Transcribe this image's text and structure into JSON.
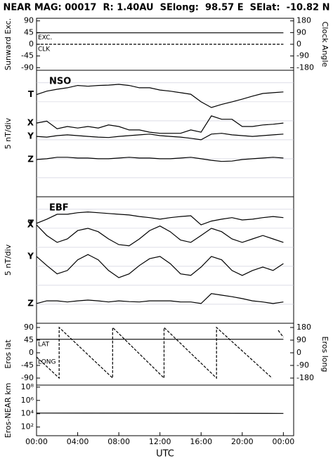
{
  "chart_data": [
    {
      "type": "line",
      "title": "NEAR MAG: 00017  R: 1.40AU  SElong:  98.57 E  SElat:  -10.82 N",
      "ylabel": "Sunward Exc.",
      "y2label": "Clock Angle",
      "xlim": [
        0,
        25
      ],
      "x": [
        0,
        24
      ],
      "ylim": [
        -100,
        100
      ],
      "yticks": [
        90,
        45,
        0,
        -45,
        -90
      ],
      "y2lim": [
        -200,
        200
      ],
      "y2ticks": [
        180,
        90,
        0,
        -90,
        -180
      ],
      "series": [
        {
          "name": "EXC.",
          "color": "#000000",
          "values": [
            44,
            44
          ]
        },
        {
          "name": "CLK",
          "color": "#000000",
          "axis": "y2",
          "dash": true,
          "values": [
            0,
            0
          ]
        }
      ]
    },
    {
      "type": "line",
      "label": "NSO",
      "ylabel": "5 nT/div",
      "xlim": [
        0,
        25
      ],
      "ylim": [
        0,
        33.3
      ],
      "grid_lines": [
        5,
        10,
        15,
        20,
        25,
        30
      ],
      "x": [
        0,
        1,
        2,
        3,
        4,
        5,
        6,
        7,
        8,
        9,
        10,
        11,
        12,
        13,
        14,
        15,
        16,
        17,
        18,
        19,
        20,
        21,
        22,
        23,
        24
      ],
      "series": [
        {
          "name": "T",
          "color": "#000000",
          "values": [
            26.9,
            27.8,
            28.3,
            28.7,
            29.3,
            29.1,
            29.3,
            29.4,
            29.6,
            29.3,
            28.7,
            28.7,
            28.1,
            27.8,
            27.4,
            27.0,
            25.0,
            23.5,
            24.3,
            25.0,
            25.7,
            26.5,
            27.2,
            27.4,
            27.6
          ]
        },
        {
          "name": "X",
          "color": "#000000",
          "values": [
            19.4,
            19.9,
            17.9,
            18.5,
            18.1,
            18.5,
            18.1,
            18.9,
            18.5,
            17.6,
            17.6,
            17.0,
            16.7,
            16.7,
            16.7,
            17.6,
            17.0,
            21.3,
            20.4,
            20.4,
            18.5,
            18.5,
            18.9,
            19.1,
            19.4
          ]
        },
        {
          "name": "Y",
          "color": "#000000",
          "values": [
            15.9,
            15.7,
            16.1,
            16.3,
            16.1,
            15.9,
            15.7,
            15.6,
            15.9,
            16.1,
            16.3,
            16.5,
            16.1,
            15.9,
            15.7,
            15.4,
            15.0,
            16.5,
            16.7,
            16.3,
            16.1,
            15.9,
            16.1,
            16.3,
            16.5
          ]
        },
        {
          "name": "Z",
          "color": "#000000",
          "values": [
            9.8,
            10.0,
            10.4,
            10.4,
            10.2,
            10.2,
            10.0,
            10.0,
            10.2,
            10.4,
            10.2,
            10.2,
            10.0,
            10.0,
            10.2,
            10.4,
            10.0,
            9.6,
            9.3,
            9.4,
            9.8,
            10.0,
            10.2,
            10.4,
            10.2
          ]
        }
      ]
    },
    {
      "type": "line",
      "label": "EBF",
      "ylabel": "5 nT/div",
      "xlim": [
        0,
        25
      ],
      "ylim": [
        0,
        33.3
      ],
      "grid_lines": [
        5,
        10,
        15,
        20,
        25,
        30
      ],
      "x": [
        0,
        1,
        2,
        3,
        4,
        5,
        6,
        7,
        8,
        9,
        10,
        11,
        12,
        13,
        14,
        15,
        16,
        17,
        18,
        19,
        20,
        21,
        22,
        23,
        24
      ],
      "series": [
        {
          "name": "T",
          "color": "#000000",
          "values": [
            26.3,
            27.4,
            28.7,
            28.7,
            29.1,
            29.3,
            29.1,
            28.9,
            28.7,
            28.5,
            28.1,
            27.8,
            27.4,
            27.8,
            28.1,
            28.3,
            25.9,
            26.9,
            27.4,
            27.8,
            27.2,
            27.4,
            27.8,
            28.1,
            27.8
          ]
        },
        {
          "name": "X",
          "color": "#000000",
          "values": [
            25.9,
            23.1,
            21.3,
            22.2,
            24.4,
            25.0,
            24.1,
            22.2,
            20.7,
            20.4,
            22.2,
            24.4,
            25.6,
            24.1,
            21.9,
            21.3,
            23.1,
            25.0,
            24.1,
            22.2,
            21.3,
            22.2,
            23.1,
            22.2,
            21.3
          ]
        },
        {
          "name": "Y",
          "color": "#000000",
          "values": [
            17.6,
            15.2,
            13.0,
            13.9,
            16.7,
            18.1,
            16.7,
            13.9,
            12.0,
            13.0,
            15.2,
            17.0,
            17.6,
            15.7,
            13.0,
            12.6,
            14.8,
            17.6,
            16.7,
            13.9,
            12.6,
            13.9,
            14.8,
            13.9,
            15.7
          ]
        },
        {
          "name": "Z",
          "color": "#000000",
          "values": [
            5.2,
            5.9,
            5.9,
            5.6,
            5.9,
            6.1,
            5.9,
            5.6,
            5.9,
            5.7,
            5.6,
            5.9,
            5.9,
            5.9,
            5.6,
            5.6,
            5.2,
            7.8,
            7.4,
            7.0,
            6.5,
            5.9,
            5.6,
            5.2,
            5.6
          ]
        }
      ]
    },
    {
      "type": "line",
      "ylabel": "Eros lat",
      "y2label": "Eros long",
      "xlim": [
        0,
        25
      ],
      "x": [
        0,
        24
      ],
      "ylim": [
        -115,
        105
      ],
      "yticks": [
        90,
        45,
        0,
        -45,
        -90
      ],
      "y2lim": [
        -230,
        210
      ],
      "y2ticks": [
        180,
        90,
        0,
        -90,
        -180
      ],
      "series": [
        {
          "name": "LAT",
          "color": "#000000",
          "values": [
            48,
            48
          ]
        },
        {
          "name": "LONG",
          "color": "#000000",
          "axis": "y2",
          "dash": true,
          "x": [
            0,
            2.2,
            2.2,
            7.4,
            7.4,
            12.4,
            12.4,
            17.5,
            17.5,
            22.9,
            23.2,
            23.5,
            24
          ],
          "values": [
            -30,
            -180,
            180,
            -180,
            180,
            -180,
            180,
            -180,
            180,
            -180,
            null,
            160,
            110
          ]
        }
      ]
    },
    {
      "type": "line",
      "ylabel": "Eros-NEAR km",
      "xlabel": "UTC",
      "log": true,
      "xlim": [
        0,
        25
      ],
      "x": [
        0,
        16,
        24
      ],
      "ylim": [
        5,
        200000000
      ],
      "yticks": [
        {
          "value": 100000000,
          "label": "10⁸"
        },
        {
          "value": 1000000,
          "label": "10⁶"
        },
        {
          "value": 10000,
          "label": "10⁴"
        },
        {
          "value": 100,
          "label": "10²"
        }
      ],
      "xticks": [
        {
          "value": 0,
          "label": "00:00"
        },
        {
          "value": 4,
          "label": "04:00"
        },
        {
          "value": 8,
          "label": "08:00"
        },
        {
          "value": 12,
          "label": "12:00"
        },
        {
          "value": 16,
          "label": "16:00"
        },
        {
          "value": 20,
          "label": "20:00"
        },
        {
          "value": 24,
          "label": "00:00"
        }
      ],
      "series": [
        {
          "color": "#000000",
          "values": [
            12500,
            12000,
            11000
          ]
        }
      ]
    }
  ]
}
